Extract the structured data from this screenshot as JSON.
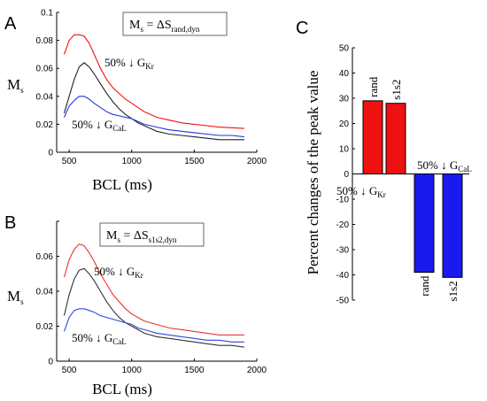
{
  "panels": {
    "A": {
      "label": "A",
      "box_label": {
        "main": "M",
        "sub1": "s",
        "mid": " = ΔS",
        "sub2": "rand,dyn"
      },
      "ylabel": {
        "main": "M",
        "sub": "s"
      },
      "xlabel": "BCL (ms)",
      "ann_kr": {
        "main": "50% ↓ G",
        "sub": "Kr"
      },
      "ann_cal": {
        "main": "50% ↓ G",
        "sub": "CaL"
      }
    },
    "B": {
      "label": "B",
      "box_label": {
        "main": "M",
        "sub1": "s",
        "mid": " = ΔS",
        "sub2": "s1s2,dyn"
      },
      "ylabel": {
        "main": "M",
        "sub": "s"
      },
      "xlabel": "BCL (ms)",
      "ann_kr": {
        "main": "50% ↓ G",
        "sub": "Kr"
      },
      "ann_cal": {
        "main": "50% ↓ G",
        "sub": "CaL"
      }
    },
    "C": {
      "label": "C",
      "ylabel": "Percent changes of the peak value",
      "ann_kr": {
        "main": "50% ↓ G",
        "sub": "Kr"
      },
      "ann_cal": {
        "main": "50% ↓ G",
        "sub": "CaL"
      }
    }
  },
  "chart_data": [
    {
      "type": "line",
      "panel": "A",
      "xlim": [
        400,
        2000
      ],
      "ylim": [
        0,
        0.1
      ],
      "xticks": [
        500,
        1000,
        1500,
        2000
      ],
      "yticks": [
        0,
        0.02,
        0.04,
        0.06,
        0.08,
        0.1
      ],
      "ytick_labels": [
        "0",
        "0.02",
        "0.04",
        "0.06",
        "0.08",
        "0.1"
      ],
      "series": [
        {
          "color": "#ee1111",
          "x": [
            460,
            500,
            540,
            580,
            620,
            660,
            700,
            750,
            800,
            850,
            900,
            950,
            1000,
            1050,
            1100,
            1150,
            1200,
            1300,
            1400,
            1500,
            1600,
            1700,
            1800,
            1900
          ],
          "y": [
            0.07,
            0.08,
            0.084,
            0.084,
            0.083,
            0.078,
            0.07,
            0.06,
            0.052,
            0.046,
            0.042,
            0.038,
            0.035,
            0.032,
            0.029,
            0.027,
            0.025,
            0.023,
            0.021,
            0.02,
            0.019,
            0.018,
            0.0175,
            0.017
          ]
        },
        {
          "color": "#222222",
          "x": [
            460,
            500,
            540,
            580,
            620,
            660,
            700,
            750,
            800,
            850,
            900,
            950,
            1000,
            1050,
            1100,
            1150,
            1200,
            1300,
            1400,
            1500,
            1600,
            1700,
            1800,
            1900
          ],
          "y": [
            0.028,
            0.04,
            0.052,
            0.061,
            0.064,
            0.061,
            0.056,
            0.049,
            0.042,
            0.036,
            0.031,
            0.027,
            0.024,
            0.021,
            0.019,
            0.017,
            0.015,
            0.013,
            0.012,
            0.011,
            0.01,
            0.009,
            0.009,
            0.009
          ]
        },
        {
          "color": "#2233dd",
          "x": [
            460,
            500,
            540,
            580,
            620,
            660,
            700,
            750,
            800,
            850,
            900,
            950,
            1000,
            1050,
            1100,
            1150,
            1200,
            1300,
            1400,
            1500,
            1600,
            1700,
            1800,
            1900
          ],
          "y": [
            0.025,
            0.033,
            0.037,
            0.04,
            0.04,
            0.038,
            0.035,
            0.032,
            0.029,
            0.027,
            0.026,
            0.025,
            0.024,
            0.022,
            0.02,
            0.019,
            0.018,
            0.016,
            0.015,
            0.014,
            0.013,
            0.012,
            0.012,
            0.011
          ]
        }
      ]
    },
    {
      "type": "line",
      "panel": "B",
      "xlim": [
        400,
        2000
      ],
      "ylim": [
        0,
        0.08
      ],
      "xticks": [
        500,
        1000,
        1500,
        2000
      ],
      "yticks": [
        0,
        0.02,
        0.04,
        0.06,
        0.08
      ],
      "ytick_labels": [
        "0",
        "0.02",
        "0.04",
        "0.06",
        ""
      ],
      "series": [
        {
          "color": "#ee3333",
          "x": [
            460,
            500,
            540,
            580,
            620,
            660,
            700,
            750,
            800,
            850,
            900,
            950,
            1000,
            1050,
            1100,
            1150,
            1200,
            1300,
            1400,
            1500,
            1600,
            1700,
            1800,
            1900
          ],
          "y": [
            0.048,
            0.058,
            0.064,
            0.067,
            0.066,
            0.062,
            0.057,
            0.05,
            0.044,
            0.038,
            0.034,
            0.03,
            0.027,
            0.025,
            0.023,
            0.022,
            0.021,
            0.019,
            0.018,
            0.017,
            0.016,
            0.015,
            0.015,
            0.015
          ]
        },
        {
          "color": "#333333",
          "x": [
            460,
            500,
            540,
            580,
            620,
            660,
            700,
            750,
            800,
            850,
            900,
            950,
            1000,
            1050,
            1100,
            1150,
            1200,
            1300,
            1400,
            1500,
            1600,
            1700,
            1800,
            1900
          ],
          "y": [
            0.026,
            0.038,
            0.047,
            0.052,
            0.053,
            0.05,
            0.046,
            0.04,
            0.034,
            0.029,
            0.025,
            0.022,
            0.02,
            0.018,
            0.016,
            0.015,
            0.014,
            0.013,
            0.012,
            0.011,
            0.01,
            0.009,
            0.009,
            0.008
          ]
        },
        {
          "color": "#3344dd",
          "x": [
            460,
            500,
            540,
            580,
            620,
            660,
            700,
            750,
            800,
            850,
            900,
            950,
            1000,
            1050,
            1100,
            1150,
            1200,
            1300,
            1400,
            1500,
            1600,
            1700,
            1800,
            1900
          ],
          "y": [
            0.017,
            0.025,
            0.029,
            0.03,
            0.03,
            0.029,
            0.028,
            0.026,
            0.025,
            0.024,
            0.023,
            0.022,
            0.021,
            0.019,
            0.018,
            0.017,
            0.016,
            0.015,
            0.014,
            0.013,
            0.012,
            0.012,
            0.011,
            0.011
          ]
        }
      ]
    },
    {
      "type": "bar",
      "panel": "C",
      "ylim": [
        -50,
        50
      ],
      "yticks": [
        -50,
        -40,
        -30,
        -20,
        -10,
        0,
        10,
        20,
        30,
        40,
        50
      ],
      "categories": [
        "rand",
        "s1s2",
        "rand",
        "s1s2"
      ],
      "values": [
        29,
        28,
        -39,
        -41
      ],
      "colors": [
        "#ee1111",
        "#ee1111",
        "#1a1aee",
        "#1a1aee"
      ]
    }
  ]
}
